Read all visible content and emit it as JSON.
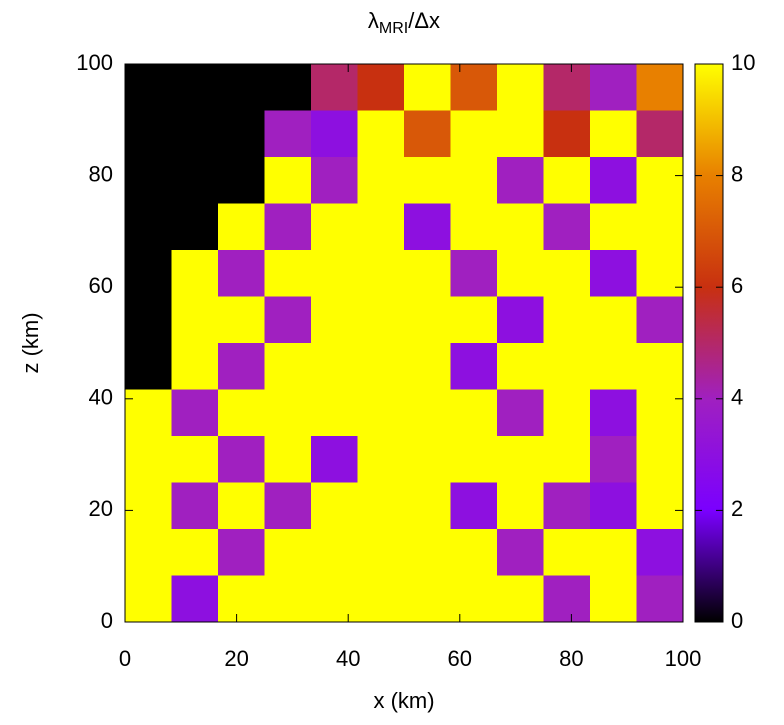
{
  "chart_data": {
    "type": "heatmap",
    "title": {
      "main": "λ",
      "sub": "MRI",
      "rest": "/Δx"
    },
    "xlabel": "x (km)",
    "ylabel": "z (km)",
    "xlim": [
      0,
      100
    ],
    "ylim": [
      0,
      100
    ],
    "xticks": [
      0,
      20,
      40,
      60,
      80,
      100
    ],
    "yticks": [
      0,
      20,
      40,
      60,
      80,
      100
    ],
    "clim": [
      0,
      10
    ],
    "cticks": [
      0,
      2,
      4,
      6,
      8,
      10
    ],
    "colormap": [
      "#000000",
      "#7a00ff",
      "#a020c0",
      "#c83010",
      "#e88000",
      "#ffff00"
    ],
    "values": [
      [
        0,
        0,
        0,
        0,
        5,
        6,
        10,
        7,
        10,
        5,
        4,
        8
      ],
      [
        0,
        0,
        0,
        4,
        3,
        10,
        7,
        10,
        10,
        6,
        10,
        5
      ],
      [
        0,
        0,
        0,
        10,
        4,
        10,
        10,
        10,
        4,
        10,
        3,
        10
      ],
      [
        0,
        0,
        10,
        4,
        10,
        10,
        3,
        10,
        10,
        4,
        10,
        10
      ],
      [
        0,
        10,
        4,
        10,
        10,
        10,
        10,
        4,
        10,
        10,
        3,
        10
      ],
      [
        0,
        10,
        10,
        4,
        10,
        10,
        10,
        10,
        3,
        10,
        10,
        4
      ],
      [
        0,
        10,
        4,
        10,
        10,
        10,
        10,
        3,
        10,
        10,
        10,
        10
      ],
      [
        10,
        4,
        10,
        10,
        10,
        10,
        10,
        10,
        4,
        10,
        3,
        10
      ],
      [
        10,
        10,
        4,
        10,
        3,
        10,
        10,
        10,
        10,
        10,
        4,
        10
      ],
      [
        10,
        4,
        10,
        4,
        10,
        10,
        10,
        3,
        10,
        4,
        3,
        10
      ],
      [
        10,
        10,
        4,
        10,
        10,
        10,
        10,
        10,
        4,
        10,
        10,
        3
      ],
      [
        10,
        3,
        10,
        10,
        10,
        10,
        10,
        10,
        10,
        4,
        10,
        4
      ]
    ]
  }
}
